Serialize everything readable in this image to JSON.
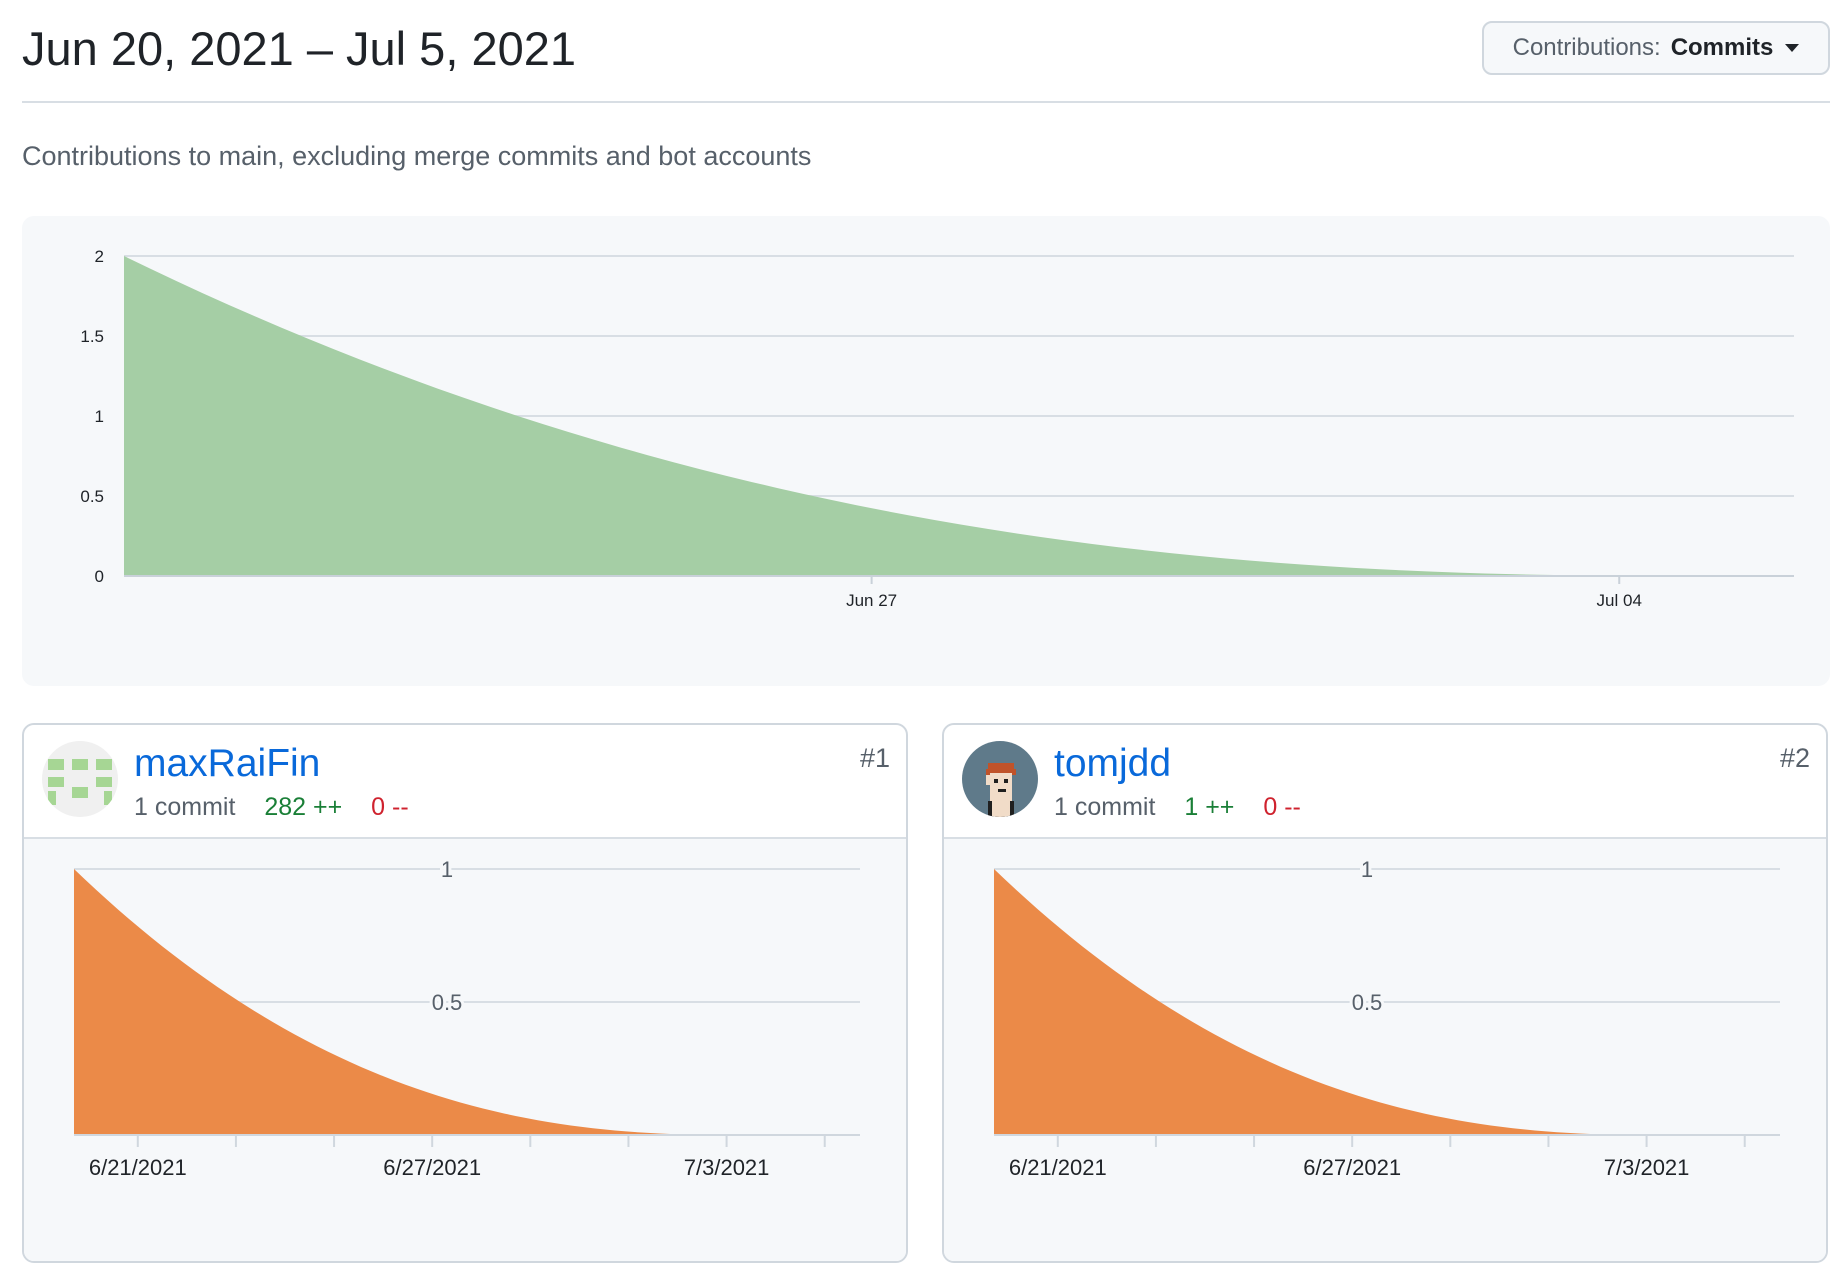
{
  "header": {
    "date_range": "Jun 20, 2021 – Jul 5, 2021",
    "contributions_label": "Contributions:",
    "contributions_value": "Commits"
  },
  "subtitle": "Contributions to main, excluding merge commits and bot accounts",
  "colors": {
    "main_area": "#a5cea5",
    "contributor_area": "#eb8a48",
    "link": "#0969da",
    "additions": "#1a7f37",
    "deletions": "#cf222e"
  },
  "contributors": [
    {
      "rank": "#1",
      "username": "maxRaiFin",
      "commits": "1 commit",
      "additions": "282 ++",
      "deletions": "0 --",
      "avatar": "identicon-green-avatar"
    },
    {
      "rank": "#2",
      "username": "tomjdd",
      "commits": "1 commit",
      "additions": "1 ++",
      "deletions": "0 --",
      "avatar": "pixel-portrait-avatar"
    }
  ],
  "chart_data": [
    {
      "type": "area",
      "x": [
        "2021-06-20",
        "2021-07-05"
      ],
      "y": [
        2,
        0
      ],
      "y_ticks": [
        "0",
        "0.5",
        "1",
        "1.5",
        "2"
      ],
      "x_ticks": [
        "Jun 27",
        "Jul 04"
      ],
      "ylim": [
        0,
        2
      ],
      "grid": true
    },
    {
      "type": "area",
      "series": [
        {
          "name": "maxRaiFin",
          "values": [
            1,
            0
          ]
        }
      ],
      "x": [
        "2021-06-20",
        "2021-07-05"
      ],
      "y_ticks": [
        "0.5",
        "1"
      ],
      "x_ticks": [
        "6/21/2021",
        "6/27/2021",
        "7/3/2021"
      ],
      "ylim": [
        0,
        1
      ],
      "grid": true
    },
    {
      "type": "area",
      "series": [
        {
          "name": "tomjdd",
          "values": [
            1,
            0
          ]
        }
      ],
      "x": [
        "2021-06-20",
        "2021-07-05"
      ],
      "y_ticks": [
        "0.5",
        "1"
      ],
      "x_ticks": [
        "6/21/2021",
        "6/27/2021",
        "7/3/2021"
      ],
      "ylim": [
        0,
        1
      ],
      "grid": true
    }
  ]
}
